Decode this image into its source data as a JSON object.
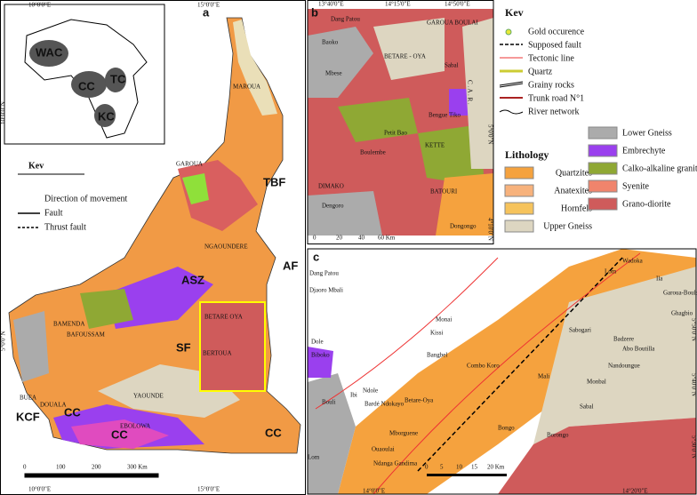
{
  "panel_a": {
    "label": "a",
    "inset": [
      "WAC",
      "CC",
      "TC",
      "KC"
    ],
    "coords": [
      "10°0'0\"E",
      "15°0'0\"E",
      "10°0'0\"E",
      "15°0'0\"E",
      "10°0'0\"N",
      "5°0'0\"N"
    ],
    "places": [
      "MAROUA",
      "GAROUA",
      "NGAOUNDERE",
      "BAMENDA",
      "BAFOUSSAM",
      "BUEA",
      "DOUALA",
      "YAOUNDE",
      "BETARE OYA",
      "BERTOUA",
      "EBOLOWA"
    ],
    "structures": [
      "TBF",
      "AF",
      "ASZ",
      "SF",
      "KCF",
      "CC",
      "CC",
      "CC"
    ],
    "key": {
      "title": "Kev",
      "items": [
        "Direction of movement",
        "Fault",
        "Thrust fault"
      ]
    },
    "scale": [
      "0",
      "100",
      "200",
      "300 Km"
    ]
  },
  "panel_b": {
    "label": "b",
    "coords": [
      "13°40'0\"E",
      "14°15'0\"E",
      "14°50'0\"E",
      "5°0'0\"N",
      "4°10'0\"N"
    ],
    "places": [
      "Dang Patou",
      "GAROUA BOULAI",
      "Baoko",
      "BETARE - OYA",
      "Sabal",
      "Mbese",
      "Bengue Tiko",
      "Petit Bao",
      "KETTE",
      "Boulembe",
      "DIMAKO",
      "BATOURI",
      "Dengoro",
      "Dongongo",
      "C . A . R ."
    ],
    "scale": [
      "0",
      "20",
      "40",
      "60 Km"
    ]
  },
  "panel_c": {
    "label": "c",
    "coords": [
      "14°0'0\"E",
      "14°20'0\"E",
      "5°50'0\"N",
      "5°40'0\"N",
      "5°30'0\"N"
    ],
    "places": [
      "Dang Patou",
      "Djaoro Mbali",
      "Lom",
      "Wadoka",
      "Ila",
      "Garoua-Boulai",
      "Ghagbio",
      "Monai",
      "Kissi",
      "Sabogari",
      "Badzere",
      "Abo Boutilla",
      "Bangbel",
      "Nandoungue",
      "Combo Koro",
      "Mali",
      "Monbal",
      "Dole",
      "Biboko",
      "Bouli",
      "Ibi",
      "Ndole",
      "Bardé Ndokayo",
      "Betare-Oya",
      "Sabal",
      "Mborguene",
      "Bongo",
      "Borongo",
      "Ouaoulai",
      "Ndanga Gandima",
      "Lom"
    ],
    "scale": [
      "0",
      "5",
      "10",
      "15",
      "20 Km"
    ]
  },
  "key": {
    "title": "Kev",
    "items": [
      "Gold occurence",
      "Supposed fault",
      "Tectonic line",
      "Quartz",
      "Grainy rocks",
      "Trunk road N°1",
      "River network"
    ]
  },
  "lithology": {
    "title": "Lithology",
    "items": [
      {
        "name": "Quartzites",
        "color": "#f5a23e"
      },
      {
        "name": "Anatexites",
        "color": "#f7b27c"
      },
      {
        "name": "Hornfels",
        "color": "#f6c35c"
      },
      {
        "name": "Upper Gneiss",
        "color": "#ddd6c1"
      },
      {
        "name": "Lower Gneiss",
        "color": "#ababab"
      },
      {
        "name": "Embrechyte",
        "color": "#9a40ee"
      },
      {
        "name": "Calko-alkaline granite",
        "color": "#8fa834"
      },
      {
        "name": "Syenite",
        "color": "#f0846c"
      },
      {
        "name": "Grano-diorite",
        "color": "#cf5b5b"
      }
    ]
  }
}
